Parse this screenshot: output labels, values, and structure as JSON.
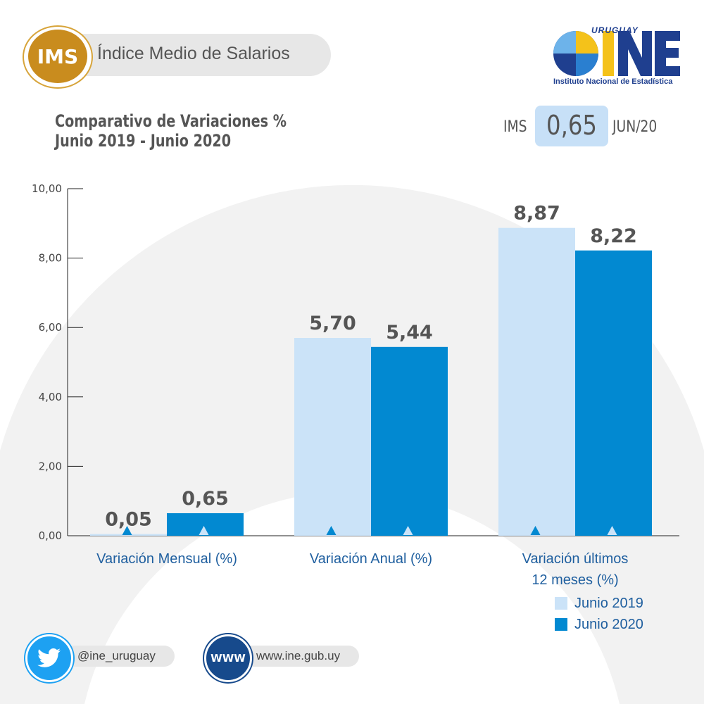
{
  "header": {
    "badge": "IMS",
    "title": "Índice Medio de Salarios"
  },
  "logo": {
    "top_text": "URUGUAY",
    "name": "INE",
    "subtitle": "Instituto Nacional de Estadística"
  },
  "summary": {
    "label": "IMS",
    "value": "0,65",
    "date": "JUN/20"
  },
  "colors": {
    "series_2019": "#cbe3f8",
    "series_2020": "#0289d1",
    "text_dark": "#555555",
    "category_text": "#1f5f9f",
    "badge_gold": "#c98c1e"
  },
  "chart_data": {
    "type": "bar",
    "title": "Comparativo de Variaciones %",
    "subtitle": "Junio 2019 - Junio 2020",
    "categories": [
      "Variación Mensual (%)",
      "Variación Anual (%)",
      "Variación últimos 12 meses (%)"
    ],
    "category_lines": [
      [
        "Variación Mensual (%)"
      ],
      [
        "Variación Anual (%)"
      ],
      [
        "Variación últimos",
        "12 meses (%)"
      ]
    ],
    "series": [
      {
        "name": "Junio 2019",
        "values": [
          0.05,
          5.7,
          8.87
        ],
        "labels": [
          "0,05",
          "5,70",
          "8,87"
        ]
      },
      {
        "name": "Junio 2020",
        "values": [
          0.65,
          5.44,
          8.22
        ],
        "labels": [
          "0,65",
          "5,44",
          "8,22"
        ]
      }
    ],
    "yticks": [
      "0,00",
      "2,00",
      "4,00",
      "6,00",
      "8,00",
      "10,00"
    ],
    "ylim": [
      0,
      10
    ],
    "grid": false,
    "legend": "bottom-right"
  },
  "footer": {
    "twitter_handle": "@ine_uruguay",
    "www_badge": "WWW",
    "website": "www.ine.gub.uy"
  }
}
